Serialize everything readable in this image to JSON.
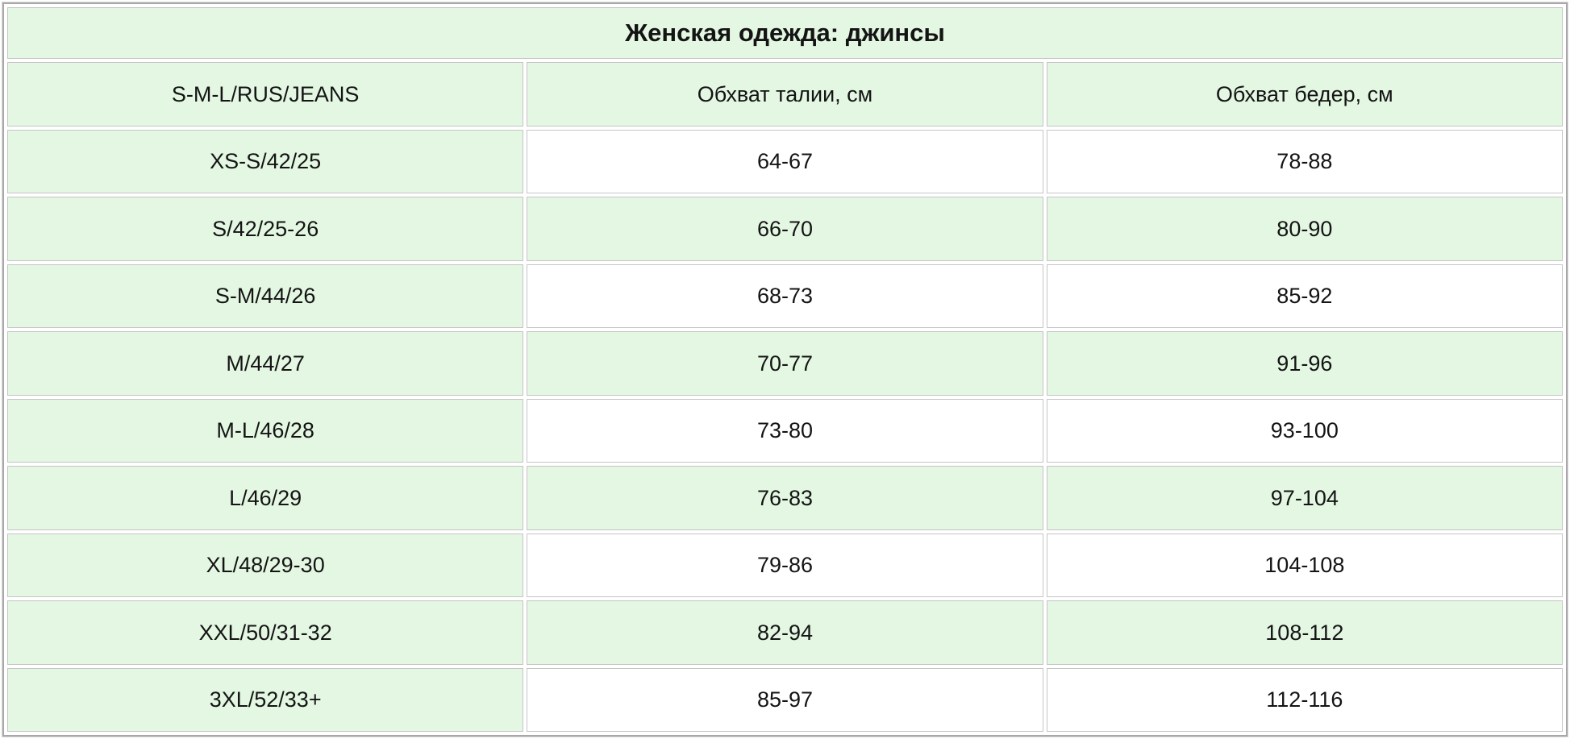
{
  "colors": {
    "row_green": "#e3f7e3",
    "row_white": "#ffffff",
    "outer_border": "#a8a8a8",
    "cell_border": "#c5c5c5",
    "text": "#141414"
  },
  "chart_data": {
    "type": "table",
    "title": "Женская одежда: джинсы",
    "columns": [
      "S-M-L/RUS/JEANS",
      "Обхват талии, см",
      "Обхват бедер, см"
    ],
    "rows": [
      [
        "XS-S/42/25",
        "64-67",
        "78-88"
      ],
      [
        "S/42/25-26",
        "66-70",
        "80-90"
      ],
      [
        "S-M/44/26",
        "68-73",
        "85-92"
      ],
      [
        "M/44/27",
        "70-77",
        "91-96"
      ],
      [
        "M-L/46/28",
        "73-80",
        "93-100"
      ],
      [
        "L/46/29",
        "76-83",
        "97-104"
      ],
      [
        "XL/48/29-30",
        "79-86",
        "104-108"
      ],
      [
        "XXL/50/31-32",
        "82-94",
        "108-112"
      ],
      [
        "3XL/52/33+",
        "85-97",
        "112-116"
      ]
    ],
    "layout": {
      "columns_equal_width": true,
      "first_column_background": "green",
      "value_rows_alternate": "white,green starting white"
    }
  }
}
